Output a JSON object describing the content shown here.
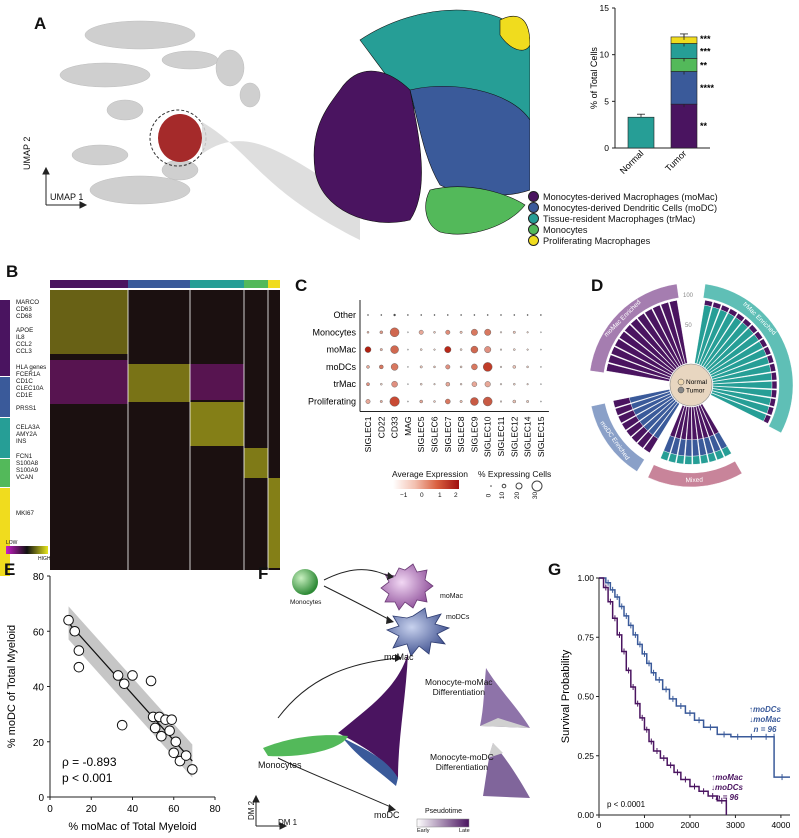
{
  "panels": {
    "a": "A",
    "b": "B",
    "c": "C",
    "d": "D",
    "e": "E",
    "f": "F",
    "g": "G"
  },
  "colors": {
    "moMac": "#4a1460",
    "moDC": "#3a5a9a",
    "trMac": "#269e96",
    "monocytes": "#53b95a",
    "proliferating": "#f0dc1e",
    "heat_low": "#c81ec8",
    "heat_high": "#e6e61e",
    "normal_bar": "#2a9a93"
  },
  "panel_a": {
    "umap_x_label": "UMAP 1",
    "umap_y_label": "UMAP 2",
    "legend": [
      {
        "label": "Monocytes-derived Macrophages (moMac)",
        "color": "#4a1460"
      },
      {
        "label": "Monocytes-derived Dendritic Cells (moDC)",
        "color": "#3a5a9a"
      },
      {
        "label": "Tissue-resident Macrophages (trMac)",
        "color": "#269e96"
      },
      {
        "label": "Monocytes",
        "color": "#53b95a"
      },
      {
        "label": "Proliferating Macrophages",
        "color": "#f0dc1e"
      }
    ],
    "chart_data": {
      "type": "bar",
      "categories": [
        "Normal",
        "Tumor"
      ],
      "ylabel": "% of Total Cells",
      "ylim": [
        0,
        15
      ],
      "yticks": [
        0,
        5,
        10,
        15
      ],
      "series": [
        {
          "name": "moMac",
          "values": [
            0,
            4.7
          ]
        },
        {
          "name": "moDC",
          "values": [
            0,
            3.5
          ]
        },
        {
          "name": "Monocytes",
          "values": [
            0,
            1.4
          ]
        },
        {
          "name": "trMac",
          "values": [
            3.3,
            1.6
          ]
        },
        {
          "name": "Proliferating",
          "values": [
            0,
            0.7
          ]
        }
      ],
      "significance": [
        "**",
        "****",
        "**",
        "***"
      ]
    }
  },
  "panel_b": {
    "genes": [
      "MARCO",
      "CD63",
      "CD68",
      "APOE",
      "IL8",
      "CCL2",
      "CCL3",
      "HLA genes",
      "FCER1A",
      "CD1C",
      "CLEC10A",
      "CD1E",
      "PRSS1",
      "CELA3A",
      "AMY2A",
      "INS",
      "FCN1",
      "S100A8",
      "S100A9",
      "VCAN",
      "MKI67"
    ],
    "scale_low": "LOW",
    "scale_high": "HIGH"
  },
  "panel_c": {
    "rows": [
      "Other",
      "Monocytes",
      "moMac",
      "moDCs",
      "trMac",
      "Proliferating"
    ],
    "cols": [
      "SIGLEC1",
      "CD22",
      "CD33",
      "MAG",
      "SIGLEC5",
      "SIGLEC6",
      "SIGLEC7",
      "SIGLEC8",
      "SIGLEC9",
      "SIGLEC10",
      "SIGLEC11",
      "SIGLEC12",
      "SIGLEC14",
      "SIGLEC15"
    ],
    "avg_label": "Average Expression",
    "avg_ticks": [
      "−1",
      "0",
      "1",
      "2"
    ],
    "pct_label": "% Expressing Cells",
    "pct_ticks": [
      "0",
      "10",
      "20",
      "30"
    ]
  },
  "panel_d": {
    "sectors": [
      "moMac Enriched",
      "trMac Enriched",
      "Mixed",
      "moDC Enriched"
    ],
    "axis_labels": [
      "100",
      "50"
    ],
    "legend": [
      "Normal",
      "Tumor"
    ]
  },
  "panel_e": {
    "chart_data": {
      "type": "scatter",
      "xlabel": "% moMac of Total Myeloid",
      "ylabel": "% moDC of Total Myeloid",
      "xlim": [
        0,
        80
      ],
      "ylim": [
        0,
        80
      ],
      "xticks": [
        0,
        20,
        40,
        60,
        80
      ],
      "yticks": [
        0,
        20,
        40,
        60,
        80
      ],
      "points": [
        [
          9,
          64
        ],
        [
          12,
          60
        ],
        [
          14,
          53
        ],
        [
          14,
          47
        ],
        [
          33,
          44
        ],
        [
          36,
          41
        ],
        [
          35,
          26
        ],
        [
          40,
          44
        ],
        [
          49,
          42
        ],
        [
          50,
          29
        ],
        [
          51,
          25
        ],
        [
          53,
          29
        ],
        [
          54,
          22
        ],
        [
          56,
          28
        ],
        [
          58,
          24
        ],
        [
          59,
          28
        ],
        [
          61,
          20
        ],
        [
          60,
          16
        ],
        [
          63,
          13
        ],
        [
          66,
          15
        ],
        [
          69,
          10
        ]
      ],
      "fit": {
        "x0": 9,
        "y0": 63,
        "x1": 69,
        "y1": 13
      },
      "stats_rho": "ρ = -0.893",
      "stats_p": "p < 0.001"
    }
  },
  "panel_f": {
    "cell_labels": {
      "monocytes": "Monocytes",
      "momac": "moMac",
      "modcs": "moDCs"
    },
    "traj_labels": {
      "momac": "moMac",
      "modc": "moDC",
      "monocytes": "Monocytes"
    },
    "dm1": "DM 1",
    "dm2": "DM 2",
    "diff1": "Monocyte-moMac\nDifferentiation",
    "diff2": "Monocyte-moDC\nDifferentiation",
    "pseudotime": "Pseudotime",
    "early": "Early",
    "late": "Late"
  },
  "panel_g": {
    "chart_data": {
      "type": "line",
      "xlabel": "Time (days)",
      "ylabel": "Survival Probability",
      "xlim": [
        0,
        4200
      ],
      "ylim": [
        0,
        1
      ],
      "xticks": [
        0,
        1000,
        2000,
        3000,
        4000
      ],
      "yticks": [
        "0.00",
        "0.25",
        "0.50",
        "0.75",
        "1.00"
      ],
      "series": [
        {
          "name": "↑moDCs ↓moMac",
          "n": "n = 96",
          "x": [
            0,
            150,
            250,
            350,
            450,
            550,
            650,
            750,
            850,
            950,
            1050,
            1150,
            1250,
            1400,
            1550,
            1700,
            1900,
            2100,
            2300,
            2600,
            2900,
            3200,
            3500,
            3850,
            3850,
            4200
          ],
          "y": [
            1.0,
            0.98,
            0.95,
            0.92,
            0.88,
            0.84,
            0.8,
            0.76,
            0.72,
            0.68,
            0.64,
            0.6,
            0.57,
            0.53,
            0.49,
            0.46,
            0.43,
            0.4,
            0.37,
            0.34,
            0.33,
            0.33,
            0.33,
            0.33,
            0.16,
            0.16
          ]
        },
        {
          "name": "↑moMac ↓moDCs",
          "n": "n = 96",
          "x": [
            0,
            100,
            200,
            300,
            400,
            500,
            600,
            700,
            800,
            900,
            1000,
            1100,
            1200,
            1350,
            1500,
            1650,
            1800,
            2000,
            2200,
            2400,
            2600,
            2800,
            2800
          ],
          "y": [
            1.0,
            0.96,
            0.9,
            0.83,
            0.76,
            0.69,
            0.61,
            0.54,
            0.47,
            0.41,
            0.36,
            0.31,
            0.27,
            0.24,
            0.21,
            0.18,
            0.15,
            0.12,
            0.1,
            0.08,
            0.06,
            0.06,
            0.0
          ]
        }
      ],
      "legend_up1": "↑moDCs",
      "legend_down1": "↓moMac",
      "legend_up2": "↑moMac",
      "legend_down2": "↓moDCs",
      "n_label": "n = 96",
      "pvalue": "p < 0.0001"
    }
  }
}
